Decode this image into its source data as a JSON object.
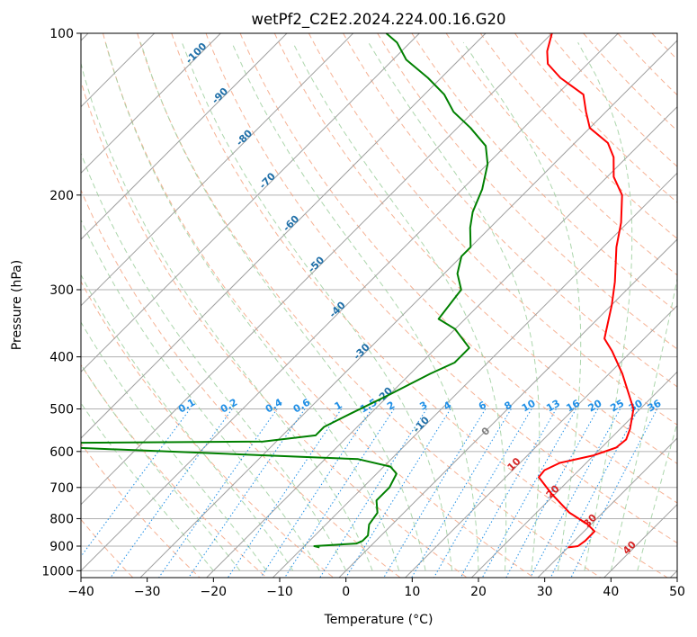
{
  "chart_data": {
    "type": "line",
    "title": "wetPf2_C2E2.2024.224.00.16.G20",
    "xlabel": "Temperature (°C)",
    "ylabel": "Pressure (hPa)",
    "xlim": [
      -40,
      50
    ],
    "ylim_pressure": [
      1030,
      100
    ],
    "y_scale": "log",
    "skew": "skew-T",
    "x_ticks": [
      -40,
      -30,
      -20,
      -10,
      0,
      10,
      20,
      30,
      40,
      50
    ],
    "y_ticks": [
      100,
      200,
      300,
      400,
      500,
      600,
      700,
      800,
      900,
      1000
    ],
    "grid": true,
    "colors": {
      "temperature": "#ff0000",
      "dewpoint": "#008000",
      "isotherm": "#a0a0a0",
      "dry_adiabat": "#f4a582",
      "moist_adiabat": "#9ecf9e",
      "mixing_ratio": "#1f8fe6",
      "isotherm_label": "#1f6fa8",
      "dry_adiabat_label": "#d62728",
      "zero_label": "#808080"
    },
    "series": [
      {
        "key": "temperature",
        "points": [
          [
            30.0,
            905
          ],
          [
            31.3,
            900
          ],
          [
            31.6,
            880
          ],
          [
            31.6,
            845
          ],
          [
            29.5,
            820
          ],
          [
            25.0,
            780
          ],
          [
            19.5,
            720
          ],
          [
            15.0,
            670
          ],
          [
            14.8,
            650
          ],
          [
            16.0,
            630
          ],
          [
            20.0,
            610
          ],
          [
            22.2,
            590
          ],
          [
            22.5,
            570
          ],
          [
            21.5,
            545
          ],
          [
            19.0,
            500
          ],
          [
            12.0,
            430
          ],
          [
            7.0,
            390
          ],
          [
            4.0,
            370
          ],
          [
            0.0,
            320
          ],
          [
            -3.0,
            290
          ],
          [
            -8.0,
            250
          ],
          [
            -11.0,
            225
          ],
          [
            -15.0,
            200
          ],
          [
            -19.0,
            185
          ],
          [
            -22.0,
            170
          ],
          [
            -25.0,
            160
          ],
          [
            -30.0,
            150
          ],
          [
            -33.0,
            140
          ],
          [
            -36.0,
            130
          ],
          [
            -42.0,
            121
          ],
          [
            -46.0,
            114
          ],
          [
            -48.0,
            108
          ],
          [
            -50.0,
            100
          ]
        ]
      },
      {
        "key": "dewpoint",
        "points": [
          [
            -7.5,
            905
          ],
          [
            -8.5,
            900
          ],
          [
            -2.5,
            890
          ],
          [
            -2.0,
            880
          ],
          [
            -2.0,
            860
          ],
          [
            -3.5,
            820
          ],
          [
            -4.0,
            780
          ],
          [
            -6.0,
            740
          ],
          [
            -6.0,
            700
          ],
          [
            -7.0,
            660
          ],
          [
            -9.0,
            640
          ],
          [
            -15.0,
            620
          ],
          [
            -60.0,
            590
          ],
          [
            -60.0,
            578
          ],
          [
            -32.0,
            575
          ],
          [
            -25.0,
            560
          ],
          [
            -25.0,
            540
          ],
          [
            -23.0,
            510
          ],
          [
            -20.0,
            470
          ],
          [
            -17.0,
            430
          ],
          [
            -15.0,
            410
          ],
          [
            -15.0,
            385
          ],
          [
            -20.0,
            355
          ],
          [
            -24.0,
            340
          ],
          [
            -25.0,
            300
          ],
          [
            -28.0,
            280
          ],
          [
            -30.0,
            260
          ],
          [
            -30.0,
            250
          ],
          [
            -33.0,
            230
          ],
          [
            -35.0,
            215
          ],
          [
            -37.0,
            195
          ],
          [
            -40.0,
            175
          ],
          [
            -43.0,
            162
          ],
          [
            -48.0,
            150
          ],
          [
            -53.0,
            140
          ],
          [
            -57.0,
            130
          ],
          [
            -62.0,
            121
          ],
          [
            -68.0,
            112
          ],
          [
            -72.0,
            104
          ],
          [
            -75.0,
            100
          ]
        ]
      }
    ],
    "annotations": {
      "isotherm_labels": [
        "-100",
        "-90",
        "-80",
        "-70",
        "-60",
        "-50",
        "-40",
        "-30",
        "-20",
        "-10"
      ],
      "mixing_ratio_labels": [
        "0.1",
        "0.2",
        "0.4",
        "0.6",
        "1",
        "1.5",
        "2",
        "3",
        "4",
        "6",
        "8",
        "10",
        "13",
        "16",
        "20",
        "25",
        "30",
        "36"
      ],
      "dry_adiabat_labels": [
        "10",
        "20",
        "30",
        "40"
      ],
      "zero_label": "0"
    }
  }
}
